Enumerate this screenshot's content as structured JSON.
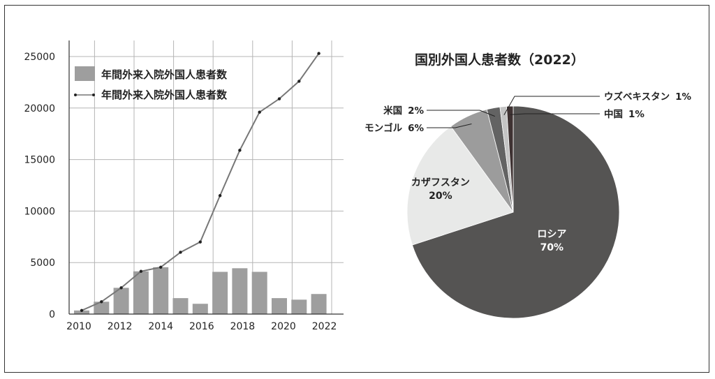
{
  "chart_data": [
    {
      "type": "bar+line",
      "x": [
        "2010",
        "2011",
        "2012",
        "2013",
        "2014",
        "2015",
        "2016",
        "2017",
        "2018",
        "2019",
        "2020",
        "2021",
        "2022"
      ],
      "xtick_labels": [
        "2010",
        "2012",
        "2014",
        "2016",
        "2018",
        "2020",
        "2022"
      ],
      "ytick_labels": [
        "0",
        "5000",
        "10000",
        "15000",
        "20000",
        "25000"
      ],
      "ylim": [
        0,
        25000
      ],
      "grid": true,
      "legend_placement": "top-left",
      "series": [
        {
          "name": "年間外来入院外国人患者数",
          "type": "bar",
          "color": "#9e9e9e",
          "values": [
            350,
            1200,
            2550,
            4150,
            4550,
            1550,
            1000,
            4100,
            4450,
            4100,
            1550,
            1400,
            1950
          ]
        },
        {
          "name": "年間外来入院外国人患者数",
          "type": "line",
          "color": "#777777",
          "values": [
            350,
            1200,
            2550,
            4150,
            4550,
            6000,
            7000,
            11500,
            15900,
            19600,
            20900,
            22600,
            25300
          ]
        }
      ]
    },
    {
      "type": "pie",
      "title": "国別外国人患者数（2022）",
      "slices": [
        {
          "label": "ロシア",
          "value": 70,
          "display": "70%",
          "color": "#555453"
        },
        {
          "label": "カザフスタン",
          "value": 20,
          "display": "20%",
          "color": "#e8e9e8"
        },
        {
          "label": "モンゴル",
          "value": 6,
          "display": "6%",
          "color": "#9c9c9c"
        },
        {
          "label": "米国",
          "value": 2,
          "display": "2%",
          "color": "#636363"
        },
        {
          "label": "ウズベキスタン",
          "value": 1,
          "display": "1%",
          "color": "#c4c4c4"
        },
        {
          "label": "中国",
          "value": 1,
          "display": "1%",
          "color": "#3e3232"
        }
      ]
    }
  ]
}
